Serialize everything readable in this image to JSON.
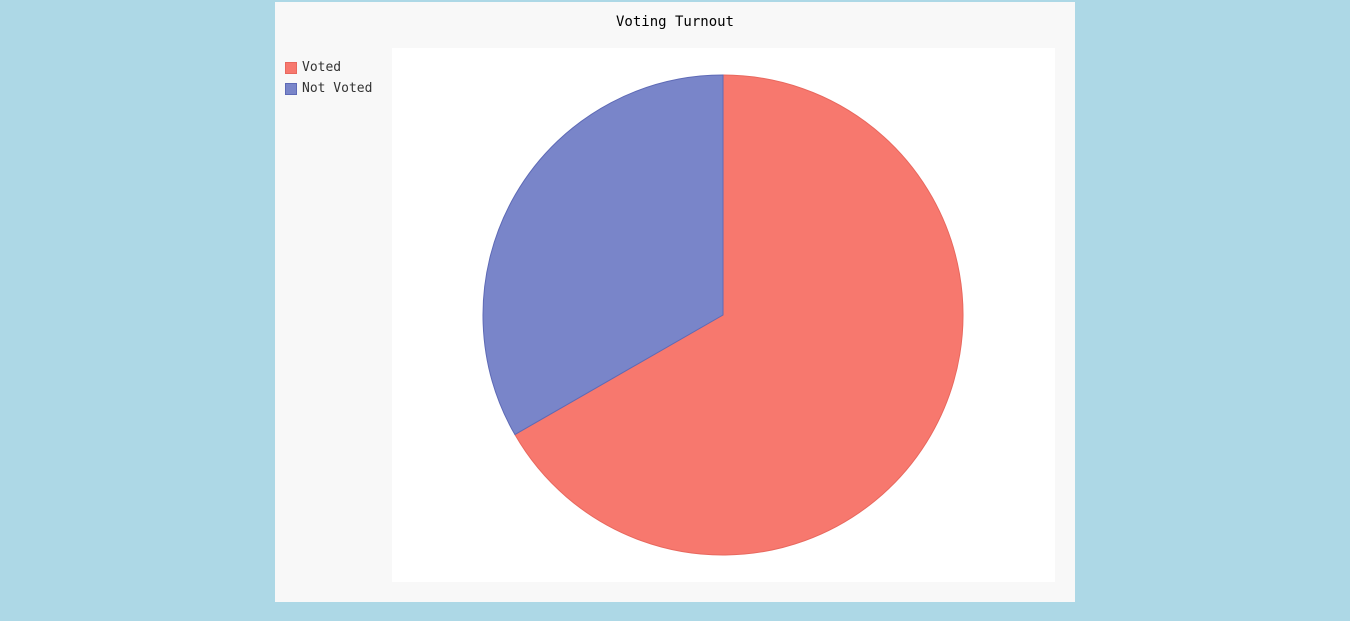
{
  "chart_data": {
    "type": "pie",
    "title": "Voting Turnout",
    "legend_position": "left",
    "slices": [
      {
        "label": "Voted",
        "value": 66.7,
        "color": "#f7786e",
        "stroke": "#e8685e"
      },
      {
        "label": "Not Voted",
        "value": 33.3,
        "color": "#7985c9",
        "stroke": "#5e6ab6"
      }
    ]
  }
}
